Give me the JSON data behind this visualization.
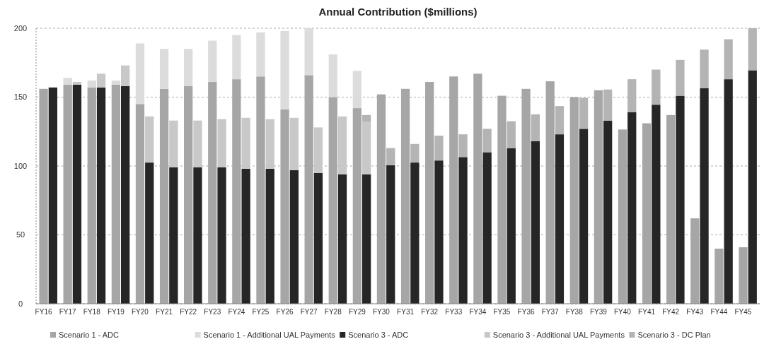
{
  "chart_data": {
    "type": "bar",
    "title": "Annual Contribution ($millions)",
    "stacked": true,
    "grid": "y",
    "legend": "bottom",
    "categories": [
      "FY16",
      null,
      "FY17",
      null,
      "FY18",
      null,
      "FY19",
      null,
      "FY20",
      null,
      "FY21",
      null,
      "FY22",
      null,
      "FY23",
      null,
      "FY24",
      null,
      "FY25",
      null,
      "FY26",
      null,
      "FY27",
      null,
      "FY28",
      null,
      "FY29",
      null,
      "FY30",
      null,
      "FY31",
      null,
      "FY32",
      null,
      "FY33",
      null,
      "FY34",
      null,
      "FY35",
      null,
      "FY36",
      null,
      "FY37",
      null,
      "FY38",
      null,
      "FY39",
      null,
      "FY40",
      null,
      "FY41",
      null,
      "FY42",
      null,
      "FY43",
      null,
      "FY44",
      null,
      "FY45",
      null
    ],
    "ylim": [
      0,
      200
    ],
    "yticks": [
      0,
      50,
      100,
      150,
      200
    ],
    "series": [
      {
        "name": "Scenario 1 - ADC",
        "color": "#a6a6a6",
        "values": [
          156,
          null,
          159,
          null,
          157,
          null,
          159,
          null,
          145,
          null,
          156,
          null,
          158,
          null,
          161,
          null,
          163,
          null,
          165,
          null,
          141,
          null,
          166,
          null,
          150,
          null,
          142,
          null,
          152,
          null,
          156,
          null,
          161,
          null,
          165,
          null,
          167,
          null,
          151,
          null,
          156,
          null,
          161.5,
          null,
          150,
          null,
          155,
          null,
          126.5,
          null,
          131,
          null,
          137,
          null,
          62,
          null,
          40,
          null,
          41,
          null
        ]
      },
      {
        "name": "Scenario 1 - Additional UAL Payments",
        "color": "#dcdcdc",
        "values": [
          null,
          null,
          5,
          null,
          5,
          null,
          3,
          null,
          44,
          null,
          29,
          null,
          27,
          null,
          30,
          null,
          32,
          null,
          32,
          null,
          57,
          null,
          34,
          null,
          31,
          null,
          27,
          null,
          null,
          null,
          null,
          null,
          null,
          null,
          null,
          null,
          null,
          null,
          null,
          null,
          null,
          null,
          null,
          null,
          null,
          null,
          null,
          null,
          null,
          null,
          null,
          null,
          null,
          null,
          null,
          null,
          null,
          null,
          null,
          null
        ]
      },
      {
        "name": "Scenario 3 - ADC",
        "color": "#262626",
        "values": [
          null,
          157,
          null,
          159,
          null,
          157,
          null,
          158,
          null,
          102.5,
          null,
          99,
          null,
          99,
          null,
          99,
          null,
          98,
          null,
          98,
          null,
          97,
          null,
          95,
          null,
          94,
          null,
          94,
          null,
          100.5,
          null,
          102.5,
          null,
          104,
          null,
          106.5,
          null,
          110,
          null,
          113,
          null,
          118,
          null,
          123,
          null,
          127,
          null,
          133,
          null,
          139,
          null,
          144.5,
          null,
          151,
          null,
          156.5,
          null,
          163,
          null,
          169.5
        ]
      },
      {
        "name": "Scenario 3 - Additional UAL Payments",
        "color": "#c8c8c8",
        "values": [
          null,
          null,
          null,
          2,
          null,
          10,
          null,
          15,
          null,
          33.5,
          null,
          34,
          null,
          34,
          null,
          35,
          null,
          37,
          null,
          36,
          null,
          38,
          null,
          33,
          null,
          42,
          null,
          38,
          null,
          null,
          null,
          null,
          null,
          null,
          null,
          null,
          null,
          null,
          null,
          null,
          null,
          null,
          null,
          null,
          null,
          null,
          null,
          null,
          null,
          null,
          null,
          null,
          null,
          null,
          null,
          null,
          null,
          null,
          null,
          null
        ]
      },
      {
        "name": "Scenario 3 - DC Plan",
        "color": "#b4b4b4",
        "values": [
          null,
          null,
          null,
          null,
          null,
          null,
          null,
          null,
          null,
          null,
          null,
          null,
          null,
          null,
          null,
          null,
          null,
          null,
          null,
          null,
          null,
          null,
          null,
          null,
          null,
          null,
          null,
          5,
          null,
          12.5,
          null,
          13.5,
          null,
          18,
          null,
          16.5,
          null,
          17,
          null,
          19.5,
          null,
          19.5,
          null,
          20.5,
          null,
          22.5,
          null,
          22.5,
          null,
          24,
          null,
          25.5,
          null,
          26,
          null,
          28,
          null,
          29,
          null,
          30.5
        ]
      }
    ]
  }
}
